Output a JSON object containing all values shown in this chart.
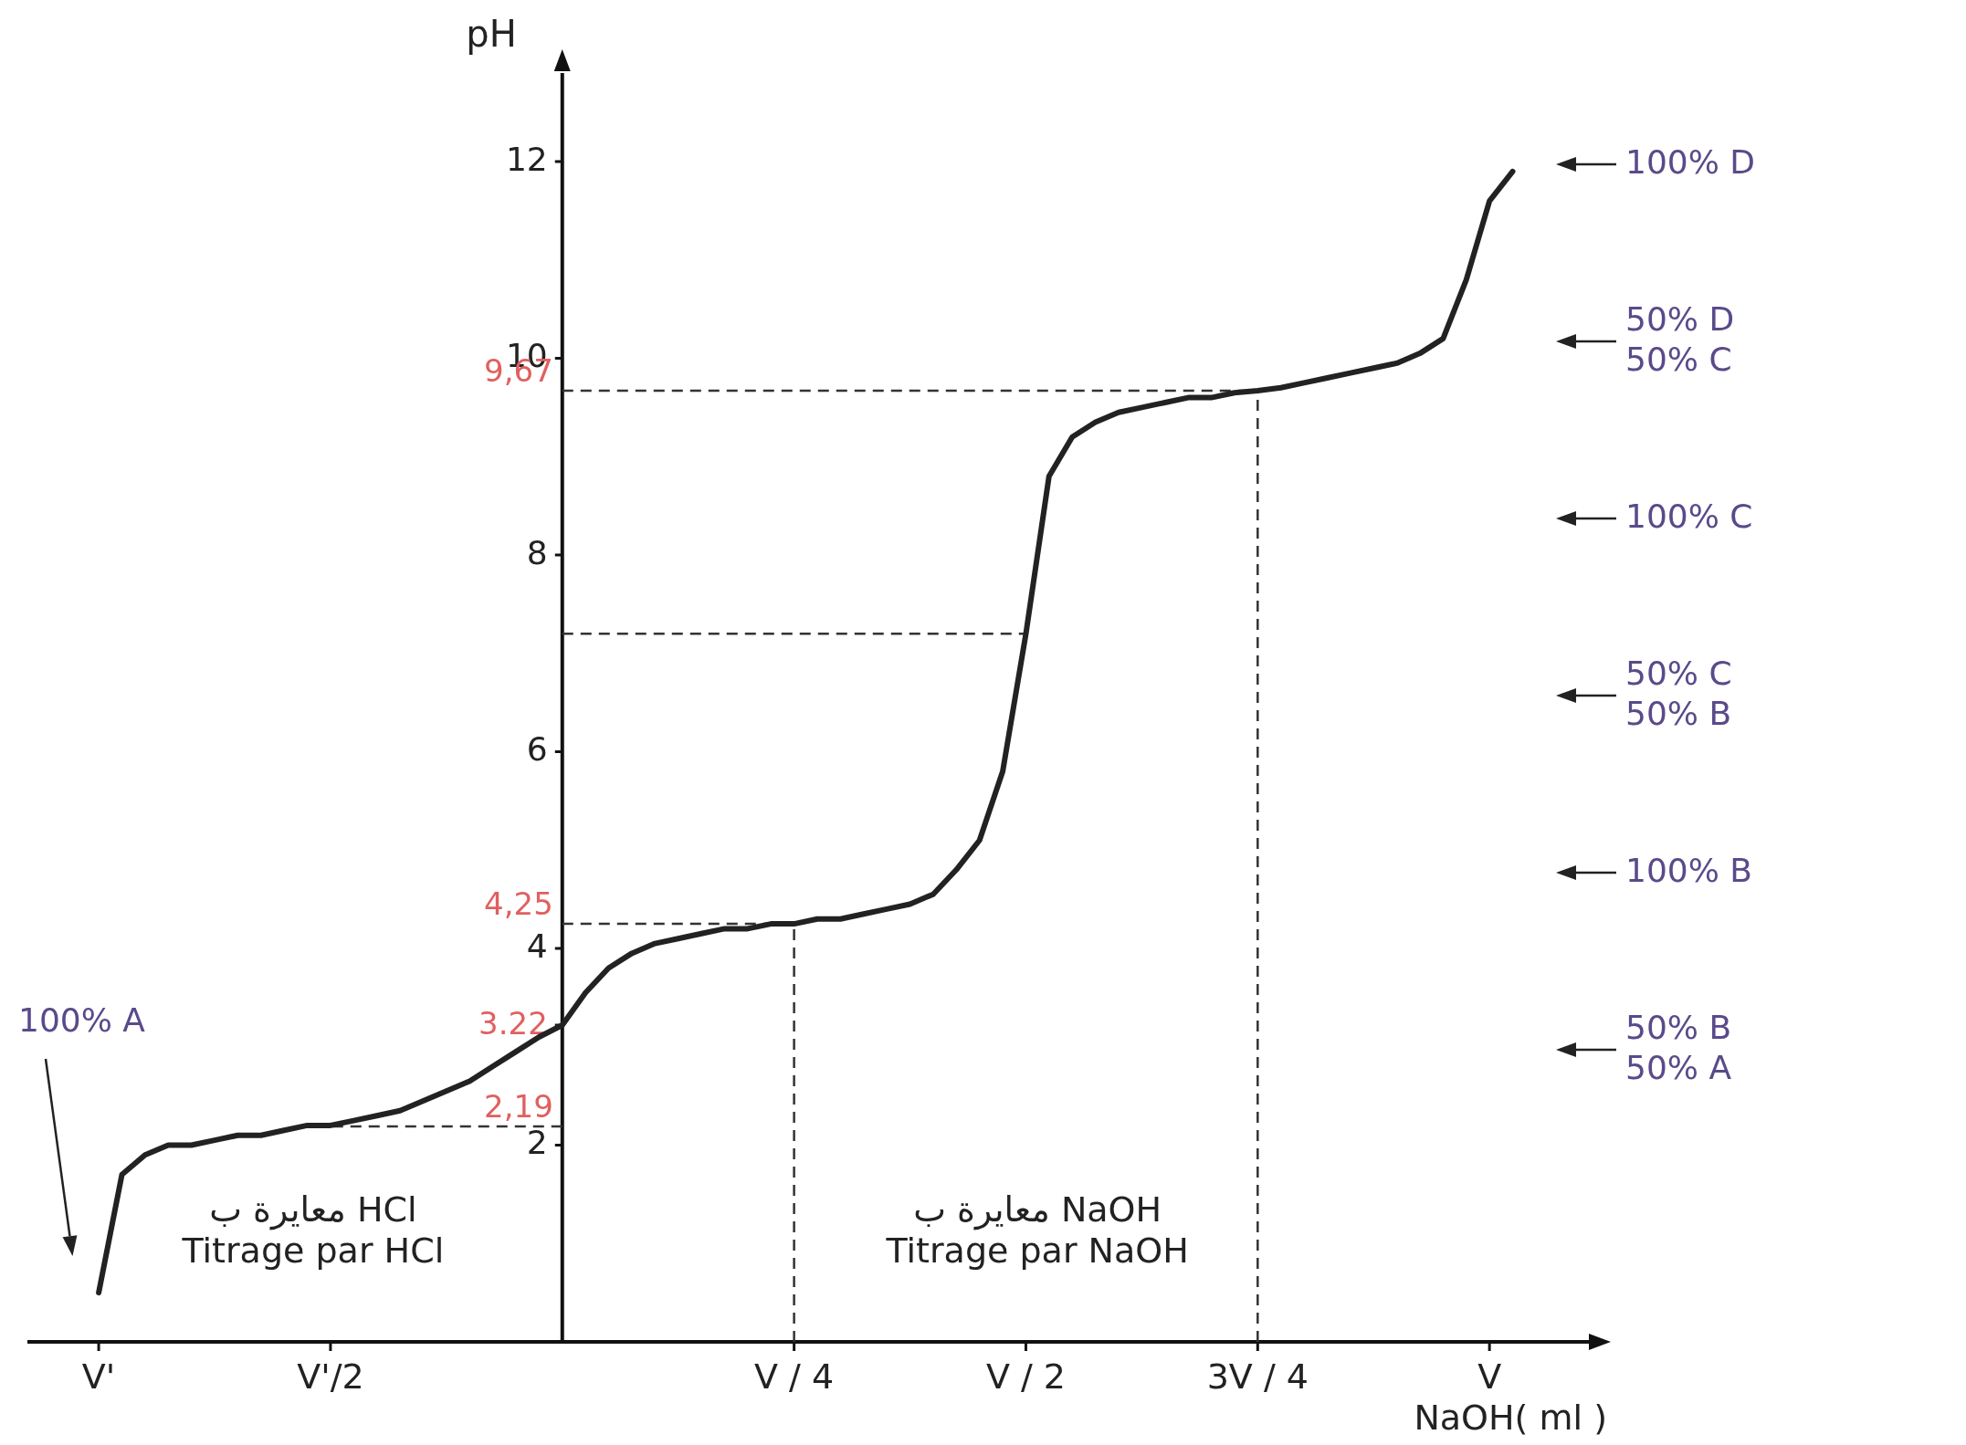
{
  "chart_data": {
    "type": "line",
    "ylabel": "pH",
    "xlabel": "NaOH( ml )",
    "color": "#222222",
    "line_style": "solid",
    "categories": [
      "V'",
      null,
      null,
      null,
      null,
      null,
      null,
      null,
      null,
      null,
      "V'/2",
      null,
      null,
      null,
      null,
      null,
      null,
      null,
      null,
      null,
      null,
      null,
      null,
      null,
      null,
      null,
      null,
      null,
      null,
      null,
      "V / 4",
      null,
      null,
      null,
      null,
      null,
      null,
      null,
      null,
      null,
      "V / 2",
      null,
      null,
      null,
      null,
      null,
      null,
      null,
      null,
      null,
      "3V / 4",
      null,
      null,
      null,
      null,
      null,
      null,
      null,
      null,
      null,
      "V",
      null
    ],
    "values": [
      0.5,
      1.7,
      1.9,
      2.0,
      2.0,
      2.05,
      2.1,
      2.1,
      2.15,
      2.2,
      2.2,
      2.25,
      2.3,
      2.35,
      2.45,
      2.55,
      2.65,
      2.8,
      2.95,
      3.1,
      3.22,
      3.55,
      3.8,
      3.95,
      4.05,
      4.1,
      4.15,
      4.2,
      4.2,
      4.25,
      4.25,
      4.3,
      4.3,
      4.35,
      4.4,
      4.45,
      4.55,
      4.8,
      5.1,
      5.8,
      7.2,
      8.8,
      9.2,
      9.35,
      9.45,
      9.5,
      9.55,
      9.6,
      9.6,
      9.65,
      9.67,
      9.7,
      9.75,
      9.8,
      9.85,
      9.9,
      9.95,
      10.05,
      10.2,
      10.8,
      11.6,
      11.9
    ],
    "ylim": [
      0,
      12.9
    ],
    "yticks": [
      2,
      {
        "value": 3.22,
        "label": "3.22"
      },
      4,
      6,
      8,
      10,
      12
    ],
    "ref_lines": [
      {
        "axis": "y",
        "value": 9.67,
        "label": "9,67",
        "color": "#333333",
        "line_style": "dashed"
      },
      {
        "axis": "y",
        "value": 7.2,
        "label": null,
        "color": "#333333",
        "line_style": "dashed"
      },
      {
        "axis": "y",
        "value": 4.25,
        "label": "4,25",
        "color": "#333333",
        "line_style": "dashed"
      },
      {
        "axis": "y",
        "value": 2.19,
        "label": "2,19",
        "color": "#333333",
        "line_style": "dashed"
      },
      {
        "axis": "x",
        "value": "V / 4",
        "label": null,
        "color": "#333333",
        "line_style": "dashed"
      },
      {
        "axis": "x",
        "value": "3V / 4",
        "label": null,
        "color": "#333333",
        "line_style": "dashed"
      }
    ],
    "annotations": [
      "100% D",
      "50% D\n50% C",
      "100% C",
      "50% C\n50% B",
      "100% B",
      "50% B\n50% A",
      "100% A",
      "معايرة ب HCl\nTitrage par HCl",
      "معايرة ب NaOH\nTitrage par NaOH"
    ]
  }
}
